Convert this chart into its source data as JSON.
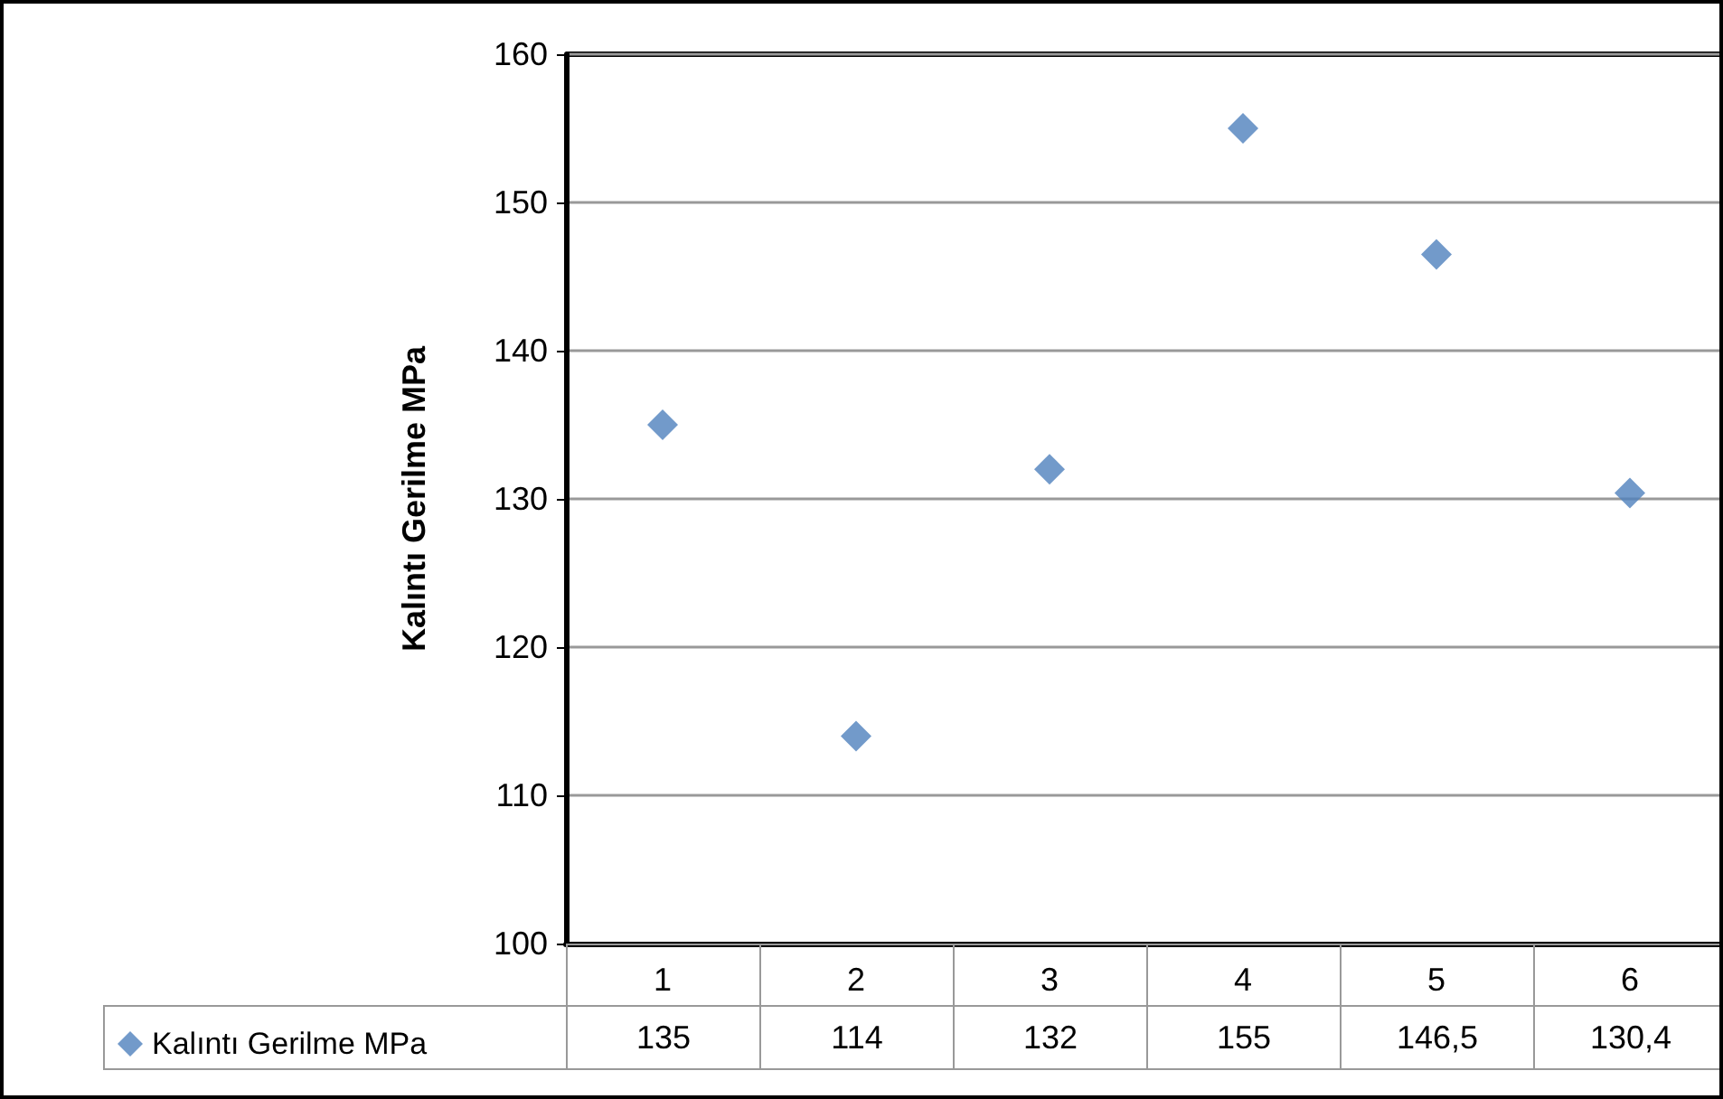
{
  "chart_data": {
    "type": "scatter",
    "ylabel": "Kalıntı Gerilme MPa",
    "categories": [
      "1",
      "2",
      "3",
      "4",
      "5",
      "6"
    ],
    "series": [
      {
        "name": "Kalıntı Gerilme MPa",
        "color": "#4f81bd",
        "values": [
          135,
          114,
          132,
          155,
          146.5,
          130.4
        ],
        "value_labels": [
          "135",
          "114",
          "132",
          "155",
          "146,5",
          "130,4"
        ]
      }
    ],
    "ylim": [
      100,
      160
    ],
    "yticks": [
      100,
      110,
      120,
      130,
      140,
      150,
      160
    ],
    "grid": "y",
    "legend": "bottom",
    "marker": "diamond"
  }
}
